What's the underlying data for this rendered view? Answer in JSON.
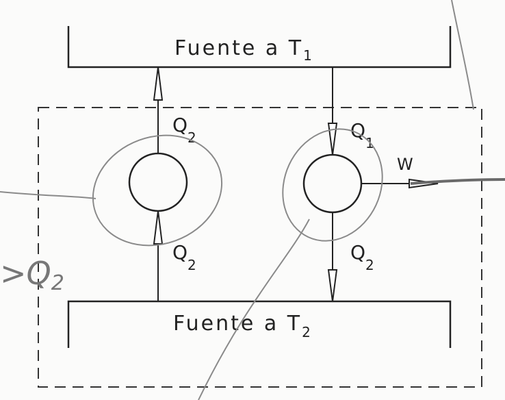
{
  "diagram": {
    "top_reservoir": {
      "text": "Fuente a T",
      "sub": "1"
    },
    "bottom_reservoir": {
      "text": "Fuente a T",
      "sub": "2"
    },
    "left_engine": {
      "top_flow": {
        "text": "Q",
        "sub": "2"
      },
      "bottom_flow": {
        "text": "Q",
        "sub": "2"
      }
    },
    "right_engine": {
      "in_flow": {
        "text": "Q",
        "sub": "1"
      },
      "out_flow": {
        "text": "Q",
        "sub": "2"
      },
      "work": {
        "text": "W"
      }
    },
    "handwritten_note": {
      "text": ">Q",
      "sub": "2"
    }
  },
  "colors": {
    "ink": "#222222",
    "pencil": "#8a8a8a",
    "dashed": "#333333"
  }
}
